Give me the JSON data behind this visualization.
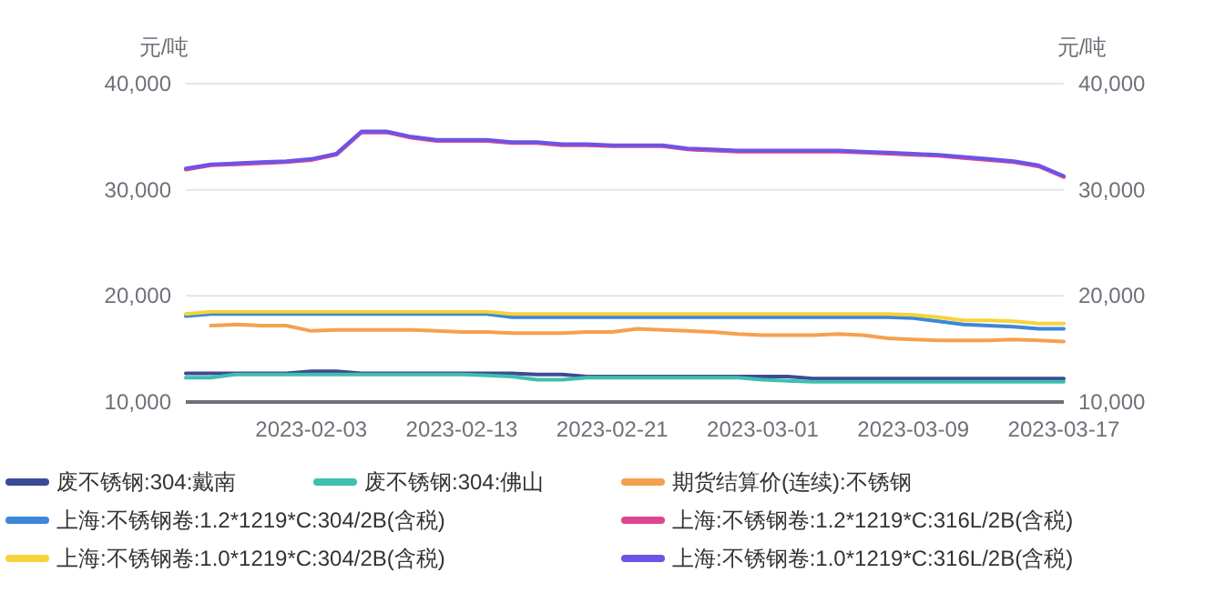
{
  "chart_data": {
    "type": "line",
    "categories": [
      null,
      null,
      null,
      null,
      null,
      "2023-02-03",
      null,
      null,
      null,
      null,
      null,
      "2023-02-13",
      null,
      null,
      null,
      null,
      null,
      "2023-02-21",
      null,
      null,
      null,
      null,
      null,
      "2023-03-01",
      null,
      null,
      null,
      null,
      null,
      "2023-03-09",
      null,
      null,
      null,
      null,
      null,
      "2023-03-17"
    ],
    "ylabel": "元/吨",
    "y2label": "元/吨",
    "ylim": [
      10000,
      40000
    ],
    "yticks": [
      {
        "value": 10000,
        "label": "10,000"
      },
      {
        "value": 20000,
        "label": "20,000"
      },
      {
        "value": 30000,
        "label": "30,000"
      },
      {
        "value": 40000,
        "label": "40,000"
      }
    ],
    "y2lim": [
      10000,
      40000
    ],
    "y2ticks": [
      {
        "value": 10000,
        "label": "10,000"
      },
      {
        "value": 20000,
        "label": "20,000"
      },
      {
        "value": 30000,
        "label": "30,000"
      },
      {
        "value": 40000,
        "label": "40,000"
      }
    ],
    "grid": "y",
    "legend": "bottom",
    "marker": "none",
    "line_style": "solid",
    "series": [
      {
        "name": "废不锈钢:304:戴南",
        "color": "#3c4a96",
        "values": [
          12700,
          12700,
          12700,
          12700,
          12700,
          12900,
          12900,
          12700,
          12700,
          12700,
          12700,
          12700,
          12700,
          12700,
          12600,
          12600,
          12400,
          12400,
          12400,
          12400,
          12400,
          12400,
          12400,
          12400,
          12400,
          12200,
          12200,
          12200,
          12200,
          12200,
          12200,
          12200,
          12200,
          12200,
          12200,
          12200
        ]
      },
      {
        "name": "废不锈钢:304:佛山",
        "color": "#3fbfae",
        "values": [
          12300,
          12300,
          12600,
          12600,
          12600,
          12600,
          12600,
          12600,
          12600,
          12600,
          12600,
          12600,
          12500,
          12400,
          12100,
          12100,
          12300,
          12300,
          12300,
          12300,
          12300,
          12300,
          12300,
          12100,
          12000,
          11900,
          11900,
          11900,
          11900,
          11900,
          11900,
          11900,
          11900,
          11900,
          11900,
          11900
        ]
      },
      {
        "name": "期货结算价(连续):不锈钢",
        "color": "#f5a04f",
        "values": [
          null,
          17200,
          17300,
          17200,
          17200,
          16700,
          16800,
          16800,
          16800,
          16800,
          16700,
          16600,
          16600,
          16500,
          16500,
          16500,
          16600,
          16600,
          16900,
          16800,
          16700,
          16600,
          16400,
          16300,
          16300,
          16300,
          16400,
          16300,
          16000,
          15900,
          15800,
          15800,
          15800,
          15900,
          15800,
          15700
        ]
      },
      {
        "name": "上海:不锈钢卷:1.2*1219*C:304/2B(含税)",
        "color": "#3d86d9",
        "values": [
          18100,
          18300,
          18300,
          18300,
          18300,
          18300,
          18300,
          18300,
          18300,
          18300,
          18300,
          18300,
          18300,
          18000,
          18000,
          18000,
          18000,
          18000,
          18000,
          18000,
          18000,
          18000,
          18000,
          18000,
          18000,
          18000,
          18000,
          18000,
          18000,
          17900,
          17600,
          17300,
          17200,
          17100,
          16900,
          16900
        ]
      },
      {
        "name": "上海:不锈钢卷:1.2*1219*C:316L/2B(含税)",
        "color": "#e0468f",
        "values": [
          31900,
          32300,
          32400,
          32500,
          32600,
          32800,
          33300,
          35400,
          35400,
          34900,
          34600,
          34600,
          34600,
          34400,
          34400,
          34200,
          34200,
          34100,
          34100,
          34100,
          33800,
          33700,
          33600,
          33600,
          33600,
          33600,
          33600,
          33500,
          33400,
          33300,
          33200,
          33000,
          32800,
          32600,
          32200,
          31200
        ]
      },
      {
        "name": "上海:不锈钢卷:1.0*1219*C:304/2B(含税)",
        "color": "#f5d33b",
        "values": [
          18300,
          18500,
          18500,
          18500,
          18500,
          18500,
          18500,
          18500,
          18500,
          18500,
          18500,
          18500,
          18500,
          18300,
          18300,
          18300,
          18300,
          18300,
          18300,
          18300,
          18300,
          18300,
          18300,
          18300,
          18300,
          18300,
          18300,
          18300,
          18300,
          18200,
          18000,
          17700,
          17700,
          17600,
          17400,
          17400
        ]
      },
      {
        "name": "上海:不锈钢卷:1.0*1219*C:316L/2B(含税)",
        "color": "#6b54e8",
        "values": [
          32000,
          32400,
          32500,
          32600,
          32700,
          32900,
          33400,
          35500,
          35500,
          35000,
          34700,
          34700,
          34700,
          34500,
          34500,
          34300,
          34300,
          34200,
          34200,
          34200,
          33900,
          33800,
          33700,
          33700,
          33700,
          33700,
          33700,
          33600,
          33500,
          33400,
          33300,
          33100,
          32900,
          32700,
          32300,
          31300
        ]
      }
    ]
  }
}
